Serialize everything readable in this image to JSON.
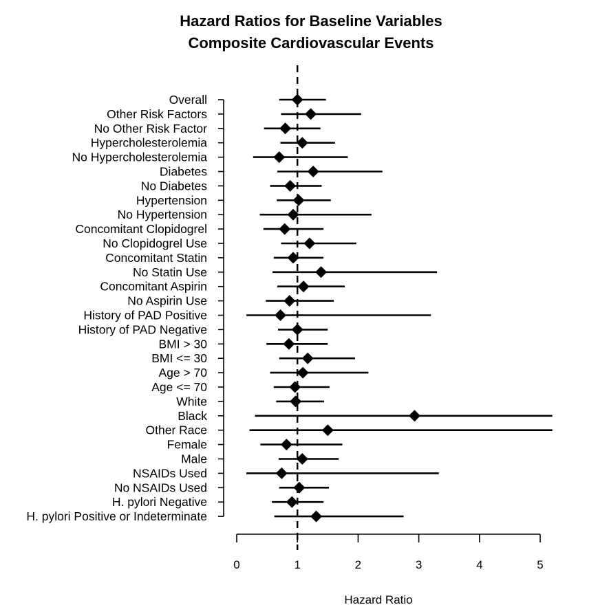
{
  "chart_data": {
    "type": "forest",
    "title": "Hazard Ratios for Baseline Variables",
    "subtitle": "Composite Cardiovascular Events",
    "xlabel": "Hazard Ratio",
    "xlim": [
      0,
      5.2
    ],
    "xticks": [
      0,
      1,
      2,
      3,
      4,
      5
    ],
    "reference_line": 1,
    "grid": false,
    "rows": [
      {
        "label": "Overall",
        "hr": 1.0,
        "lower": 0.7,
        "upper": 1.47
      },
      {
        "label": "Other Risk Factors",
        "hr": 1.22,
        "lower": 0.73,
        "upper": 2.05
      },
      {
        "label": "No Other Risk Factor",
        "hr": 0.8,
        "lower": 0.45,
        "upper": 1.38
      },
      {
        "label": "Hypercholesterolemia",
        "hr": 1.08,
        "lower": 0.72,
        "upper": 1.62
      },
      {
        "label": "No Hypercholesterolemia",
        "hr": 0.7,
        "lower": 0.27,
        "upper": 1.83
      },
      {
        "label": "Diabetes",
        "hr": 1.26,
        "lower": 0.67,
        "upper": 2.4
      },
      {
        "label": "No Diabetes",
        "hr": 0.88,
        "lower": 0.55,
        "upper": 1.4
      },
      {
        "label": "Hypertension",
        "hr": 1.02,
        "lower": 0.66,
        "upper": 1.55
      },
      {
        "label": "No Hypertension",
        "hr": 0.93,
        "lower": 0.38,
        "upper": 2.22
      },
      {
        "label": "Concomitant Clopidogrel",
        "hr": 0.79,
        "lower": 0.44,
        "upper": 1.43
      },
      {
        "label": "No Clopidogrel Use",
        "hr": 1.2,
        "lower": 0.73,
        "upper": 1.97
      },
      {
        "label": "Concomitant Statin",
        "hr": 0.93,
        "lower": 0.61,
        "upper": 1.43
      },
      {
        "label": "No Statin Use",
        "hr": 1.39,
        "lower": 0.59,
        "upper": 3.3
      },
      {
        "label": "Concomitant Aspirin",
        "hr": 1.1,
        "lower": 0.67,
        "upper": 1.78
      },
      {
        "label": "No Aspirin Use",
        "hr": 0.87,
        "lower": 0.48,
        "upper": 1.6
      },
      {
        "label": "History of PAD Positive",
        "hr": 0.72,
        "lower": 0.16,
        "upper": 3.2
      },
      {
        "label": "History of PAD Negative",
        "hr": 1.0,
        "lower": 0.68,
        "upper": 1.5
      },
      {
        "label": "BMI > 30",
        "hr": 0.86,
        "lower": 0.49,
        "upper": 1.5
      },
      {
        "label": "BMI <= 30",
        "hr": 1.17,
        "lower": 0.7,
        "upper": 1.95
      },
      {
        "label": "Age > 70",
        "hr": 1.09,
        "lower": 0.55,
        "upper": 2.17
      },
      {
        "label": "Age <= 70",
        "hr": 0.96,
        "lower": 0.61,
        "upper": 1.53
      },
      {
        "label": "White",
        "hr": 0.97,
        "lower": 0.65,
        "upper": 1.44
      },
      {
        "label": "Black",
        "hr": 2.93,
        "lower": 0.3,
        "upper": 5.2
      },
      {
        "label": "Other Race",
        "hr": 1.5,
        "lower": 0.21,
        "upper": 5.2
      },
      {
        "label": "Female",
        "hr": 0.82,
        "lower": 0.39,
        "upper": 1.74
      },
      {
        "label": "Male",
        "hr": 1.08,
        "lower": 0.69,
        "upper": 1.68
      },
      {
        "label": "NSAIDs Used",
        "hr": 0.74,
        "lower": 0.16,
        "upper": 3.33
      },
      {
        "label": "No NSAIDs Used",
        "hr": 1.03,
        "lower": 0.7,
        "upper": 1.52
      },
      {
        "label": "H. pylori Negative",
        "hr": 0.91,
        "lower": 0.58,
        "upper": 1.43
      },
      {
        "label": "H. pylori Positive or Indeterminate",
        "hr": 1.31,
        "lower": 0.62,
        "upper": 2.75
      }
    ]
  }
}
